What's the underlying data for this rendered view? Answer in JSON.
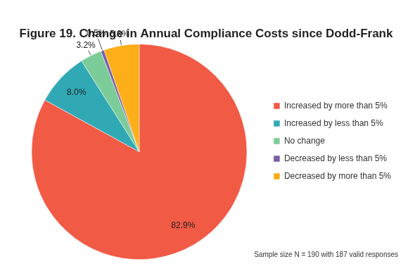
{
  "chart_data": {
    "type": "pie",
    "title": "Figure 19. Change in Annual Compliance Costs since Dodd-Frank",
    "categories": [
      "Increased by more than 5%",
      "Increased by less than 5%",
      "No change",
      "Decreased by less than 5%",
      "Decreased by more than 5%"
    ],
    "values": [
      82.9,
      8.0,
      3.2,
      0.5,
      5.3
    ],
    "value_labels": [
      "82.9%",
      "8.0%",
      "3.2%",
      "0.5%",
      "5.3%"
    ],
    "colors": [
      "#f15a45",
      "#30a9b5",
      "#7ccc9a",
      "#7b5ea7",
      "#fdae19"
    ],
    "legend": "right",
    "data_labels": true,
    "annotations": [
      "Sample size N = 190 with 187 valid responses"
    ]
  }
}
